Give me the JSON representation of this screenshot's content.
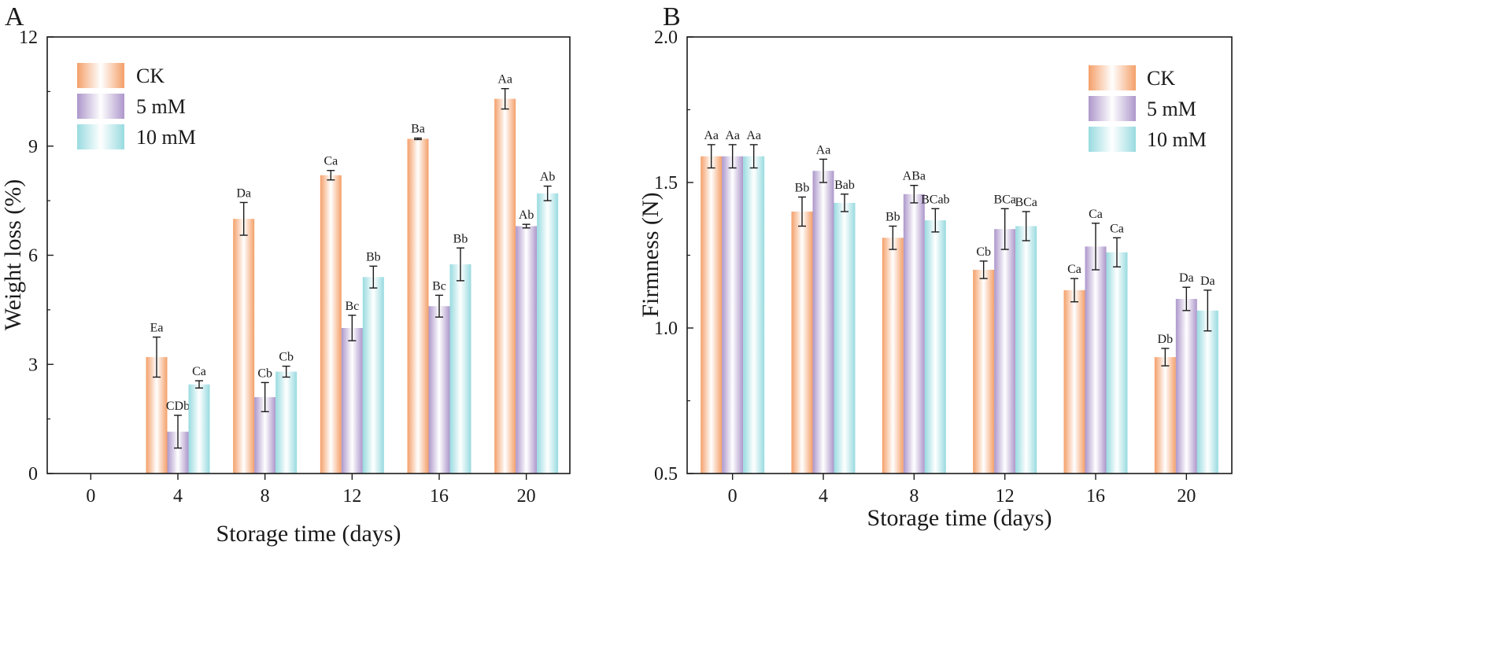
{
  "chart_data": [
    {
      "panel_label": "A",
      "type": "bar",
      "xlabel": "Storage time (days)",
      "ylabel": "Weight loss (%)",
      "ylim": [
        0,
        12
      ],
      "yticks": [
        "0",
        "3",
        "6",
        "9",
        "12"
      ],
      "ytick_values": [
        0,
        3,
        6,
        9,
        12
      ],
      "categories": [
        "0",
        "4",
        "8",
        "12",
        "16",
        "20"
      ],
      "legend_position": "top-left",
      "series": [
        {
          "name": "CK",
          "color": "#f4a06a",
          "values": [
            null,
            3.2,
            7.0,
            8.2,
            9.2,
            10.3
          ],
          "errors": [
            null,
            0.55,
            0.45,
            0.13,
            0.02,
            0.28
          ],
          "labels": [
            "",
            "Ea",
            "Da",
            "Ca",
            "Ba",
            "Aa"
          ]
        },
        {
          "name": "5 mM",
          "color": "#ad97cb",
          "values": [
            null,
            1.15,
            2.1,
            4.0,
            4.6,
            6.8
          ],
          "errors": [
            null,
            0.45,
            0.4,
            0.35,
            0.3,
            0.05
          ],
          "labels": [
            "",
            "CDb",
            "Cb",
            "Bc",
            "Bc",
            "Ab"
          ]
        },
        {
          "name": "10 mM",
          "color": "#98dbe0",
          "values": [
            null,
            2.45,
            2.8,
            5.4,
            5.75,
            7.7
          ],
          "errors": [
            null,
            0.1,
            0.15,
            0.3,
            0.45,
            0.2
          ],
          "labels": [
            "",
            "Ca",
            "Cb",
            "Bb",
            "Bb",
            "Ab"
          ]
        }
      ]
    },
    {
      "panel_label": "B",
      "type": "bar",
      "xlabel": "Storage time (days)",
      "ylabel": "Firmness (N)",
      "ylim": [
        0.5,
        2.0
      ],
      "yticks": [
        "0.5",
        "1.0",
        "1.5",
        "2.0"
      ],
      "ytick_values": [
        0.5,
        1.0,
        1.5,
        2.0
      ],
      "categories": [
        "0",
        "4",
        "8",
        "12",
        "16",
        "20"
      ],
      "legend_position": "top-right",
      "series": [
        {
          "name": "CK",
          "color": "#f4a06a",
          "values": [
            1.59,
            1.4,
            1.31,
            1.2,
            1.13,
            0.9
          ],
          "errors": [
            0.04,
            0.05,
            0.04,
            0.03,
            0.04,
            0.03
          ],
          "labels": [
            "Aa",
            "Bb",
            "Bb",
            "Cb",
            "Ca",
            "Db"
          ]
        },
        {
          "name": "5 mM",
          "color": "#ad97cb",
          "values": [
            1.59,
            1.54,
            1.46,
            1.34,
            1.28,
            1.1
          ],
          "errors": [
            0.04,
            0.04,
            0.03,
            0.07,
            0.08,
            0.04
          ],
          "labels": [
            "Aa",
            "Aa",
            "ABa",
            "BCa",
            "Ca",
            "Da"
          ]
        },
        {
          "name": "10 mM",
          "color": "#98dbe0",
          "values": [
            1.59,
            1.43,
            1.37,
            1.35,
            1.26,
            1.06
          ],
          "errors": [
            0.04,
            0.03,
            0.04,
            0.05,
            0.05,
            0.07
          ],
          "labels": [
            "Aa",
            "Bab",
            "BCab",
            "BCa",
            "Ca",
            "Da"
          ]
        }
      ]
    }
  ]
}
